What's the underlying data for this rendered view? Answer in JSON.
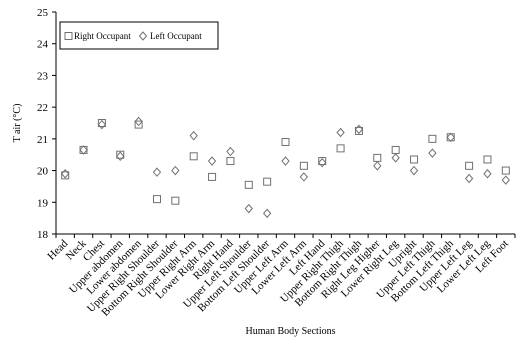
{
  "chart_data": {
    "type": "scatter",
    "xlabel": "Human Body Sections",
    "ylabel": "T air (°C)",
    "ylim": [
      18,
      25
    ],
    "yticks": [
      18,
      19,
      20,
      21,
      22,
      23,
      24,
      25
    ],
    "grid": false,
    "legend_position": "top-left",
    "categories": [
      "Head",
      "Neck",
      "Chest",
      "Upper abdomen",
      "Lower abdomen",
      "Upper Right Shoulder",
      "Bottom Right Shoulder",
      "Upper Right Arm",
      "Lower Right Arm",
      "Right Hand",
      "Upper Left Shoulder",
      "Bottom Left Shoulder",
      "Upper Left Arm",
      "Lower Left Arm",
      "Left Hand",
      "Upper Right Thigh",
      "Bottom Right Thigh",
      "Right Leg Higher",
      "Lower Right Leg",
      "Upright",
      "Upper Left Thigh",
      "Bottom Left Thigh",
      "Upper Left Leg",
      "Lower Left Leg",
      "Left Foot"
    ],
    "series": [
      {
        "name": "Right Occupant",
        "marker": "square",
        "values": [
          19.85,
          20.65,
          21.5,
          20.5,
          21.45,
          19.1,
          19.05,
          20.45,
          19.8,
          20.3,
          19.55,
          19.65,
          20.9,
          20.15,
          20.3,
          20.7,
          21.25,
          20.4,
          20.65,
          20.35,
          21.0,
          21.05,
          20.15,
          20.35,
          20.0
        ]
      },
      {
        "name": "Left Occupant",
        "marker": "diamond",
        "values": [
          19.9,
          20.65,
          21.45,
          20.45,
          21.55,
          19.95,
          20.0,
          21.1,
          20.3,
          20.6,
          18.8,
          18.65,
          20.3,
          19.8,
          20.25,
          21.2,
          21.3,
          20.15,
          20.4,
          20.0,
          20.55,
          21.05,
          19.75,
          19.9,
          19.7
        ]
      }
    ]
  },
  "colors": {
    "marker": "#707070",
    "axis": "#000000"
  }
}
